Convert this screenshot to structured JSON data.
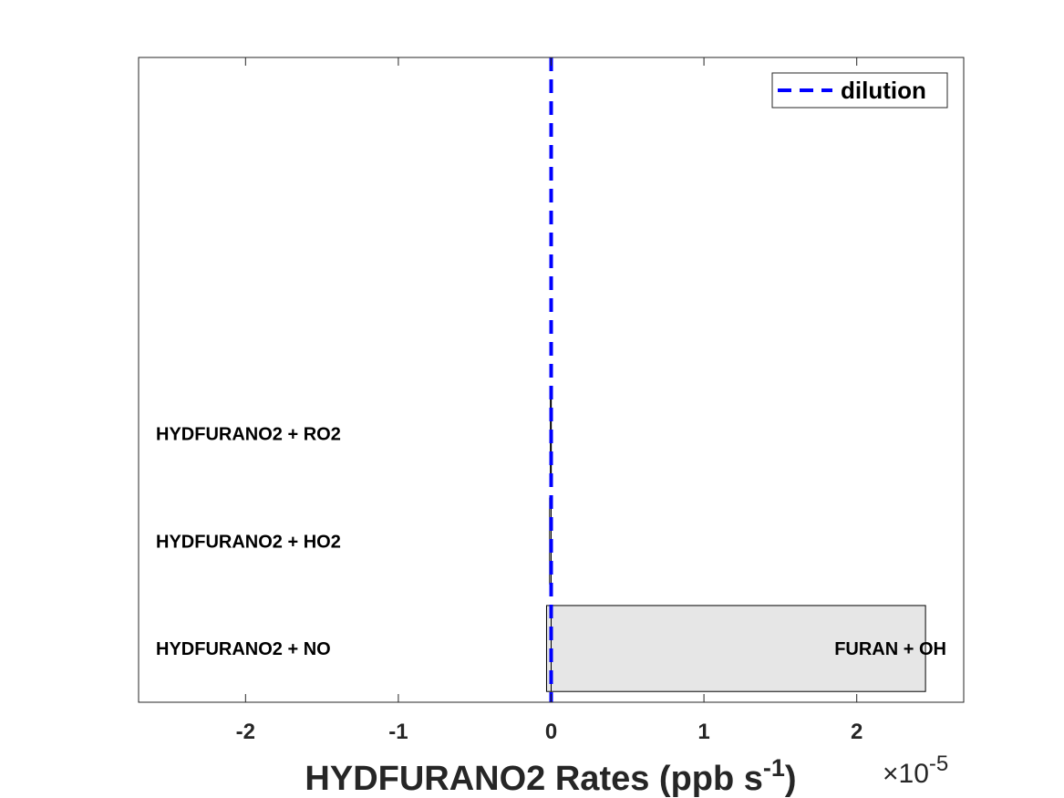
{
  "chart_data": {
    "type": "bar",
    "orientation": "horizontal",
    "xlabel": {
      "main": "HYDFURANO2 Rates (ppb s",
      "superscript": "-1",
      "suffix": ")"
    },
    "x_scale_label": {
      "times": "×10",
      "exponent": "-5"
    },
    "xlim": [
      -2.7,
      2.7
    ],
    "x_ticks": [
      -2,
      -1,
      0,
      1,
      2
    ],
    "x_tick_labels": [
      "-2",
      "-1",
      "0",
      "1",
      "2"
    ],
    "grid": false,
    "legend": {
      "placement": "top-right",
      "entries": [
        {
          "label": "dilution",
          "style": "dashed",
          "color": "#0000ff"
        }
      ]
    },
    "dilution_x": 0,
    "bar_color": "#e6e6e6",
    "bar_edge_color": "#000000",
    "bars": [
      {
        "row": 1,
        "value": 2.45,
        "label": "FURAN + OH",
        "label_side": "right"
      },
      {
        "row": 1,
        "value": -0.03,
        "label": "HYDFURANO2 + NO",
        "label_side": "left"
      },
      {
        "row": 2,
        "value": -0.01,
        "label": "HYDFURANO2 + HO2",
        "label_side": "left"
      },
      {
        "row": 3,
        "value": -0.005,
        "label": "HYDFURANO2 + RO2",
        "label_side": "left"
      }
    ],
    "rows": 6
  }
}
